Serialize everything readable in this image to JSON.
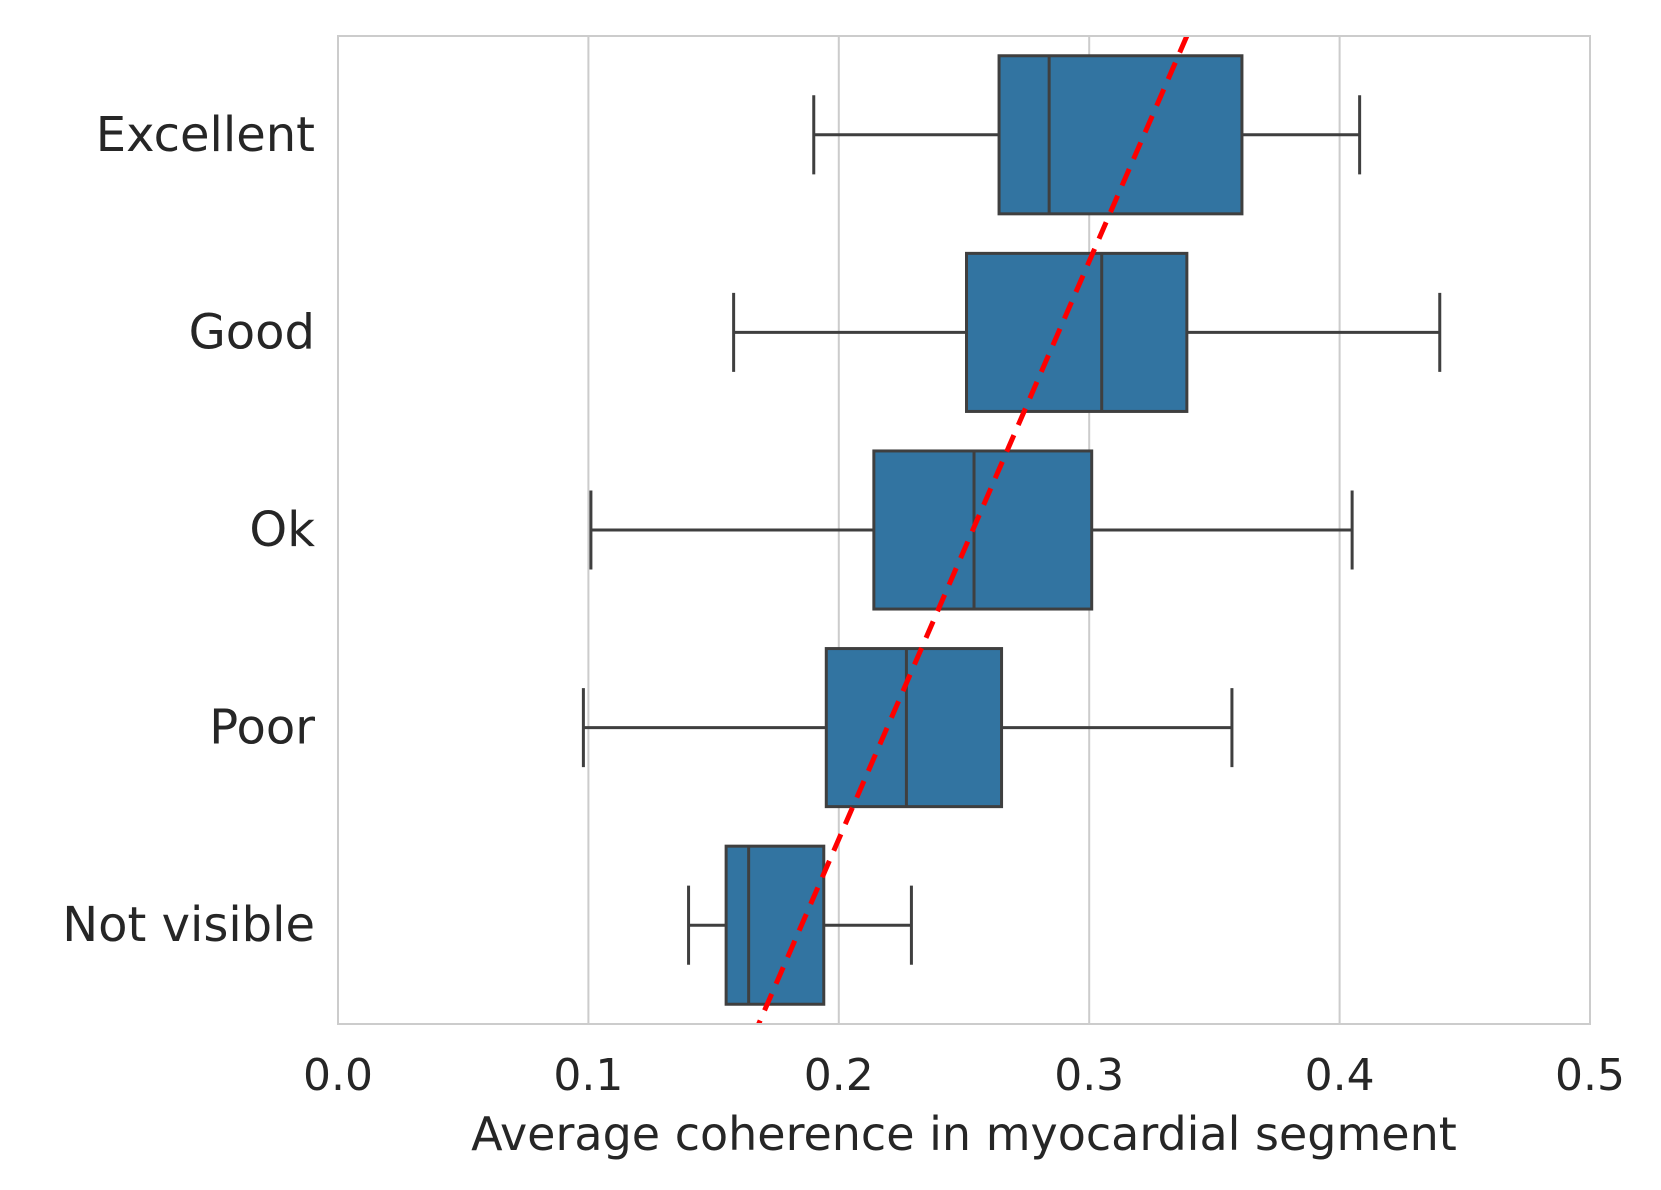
{
  "chart_data": {
    "type": "box",
    "orientation": "horizontal",
    "title": "",
    "xlabel": "Average coherence in myocardial segment",
    "ylabel": "",
    "xlim": [
      0.0,
      0.5
    ],
    "x_ticks": [
      "0.0",
      "0.1",
      "0.2",
      "0.3",
      "0.4",
      "0.5"
    ],
    "grid": "vertical",
    "box_color": "#3274a1",
    "line_color": "#3f3f3f",
    "trend_line_color": "#ff0000",
    "categories": [
      "Excellent",
      "Good",
      "Ok",
      "Poor",
      "Not visible"
    ],
    "boxes": [
      {
        "category": "Excellent",
        "whisker_low": 0.19,
        "q1": 0.264,
        "median": 0.284,
        "q3": 0.361,
        "whisker_high": 0.408
      },
      {
        "category": "Good",
        "whisker_low": 0.158,
        "q1": 0.251,
        "median": 0.305,
        "q3": 0.339,
        "whisker_high": 0.44
      },
      {
        "category": "Ok",
        "whisker_low": 0.101,
        "q1": 0.214,
        "median": 0.254,
        "q3": 0.301,
        "whisker_high": 0.405
      },
      {
        "category": "Poor",
        "whisker_low": 0.098,
        "q1": 0.195,
        "median": 0.227,
        "q3": 0.265,
        "whisker_high": 0.357
      },
      {
        "category": "Not visible",
        "whisker_low": 0.14,
        "q1": 0.155,
        "median": 0.164,
        "q3": 0.194,
        "whisker_high": 0.229
      }
    ],
    "trend_line": {
      "style": "dashed",
      "x_at_top": 0.339,
      "x_at_bottom": 0.168
    }
  }
}
